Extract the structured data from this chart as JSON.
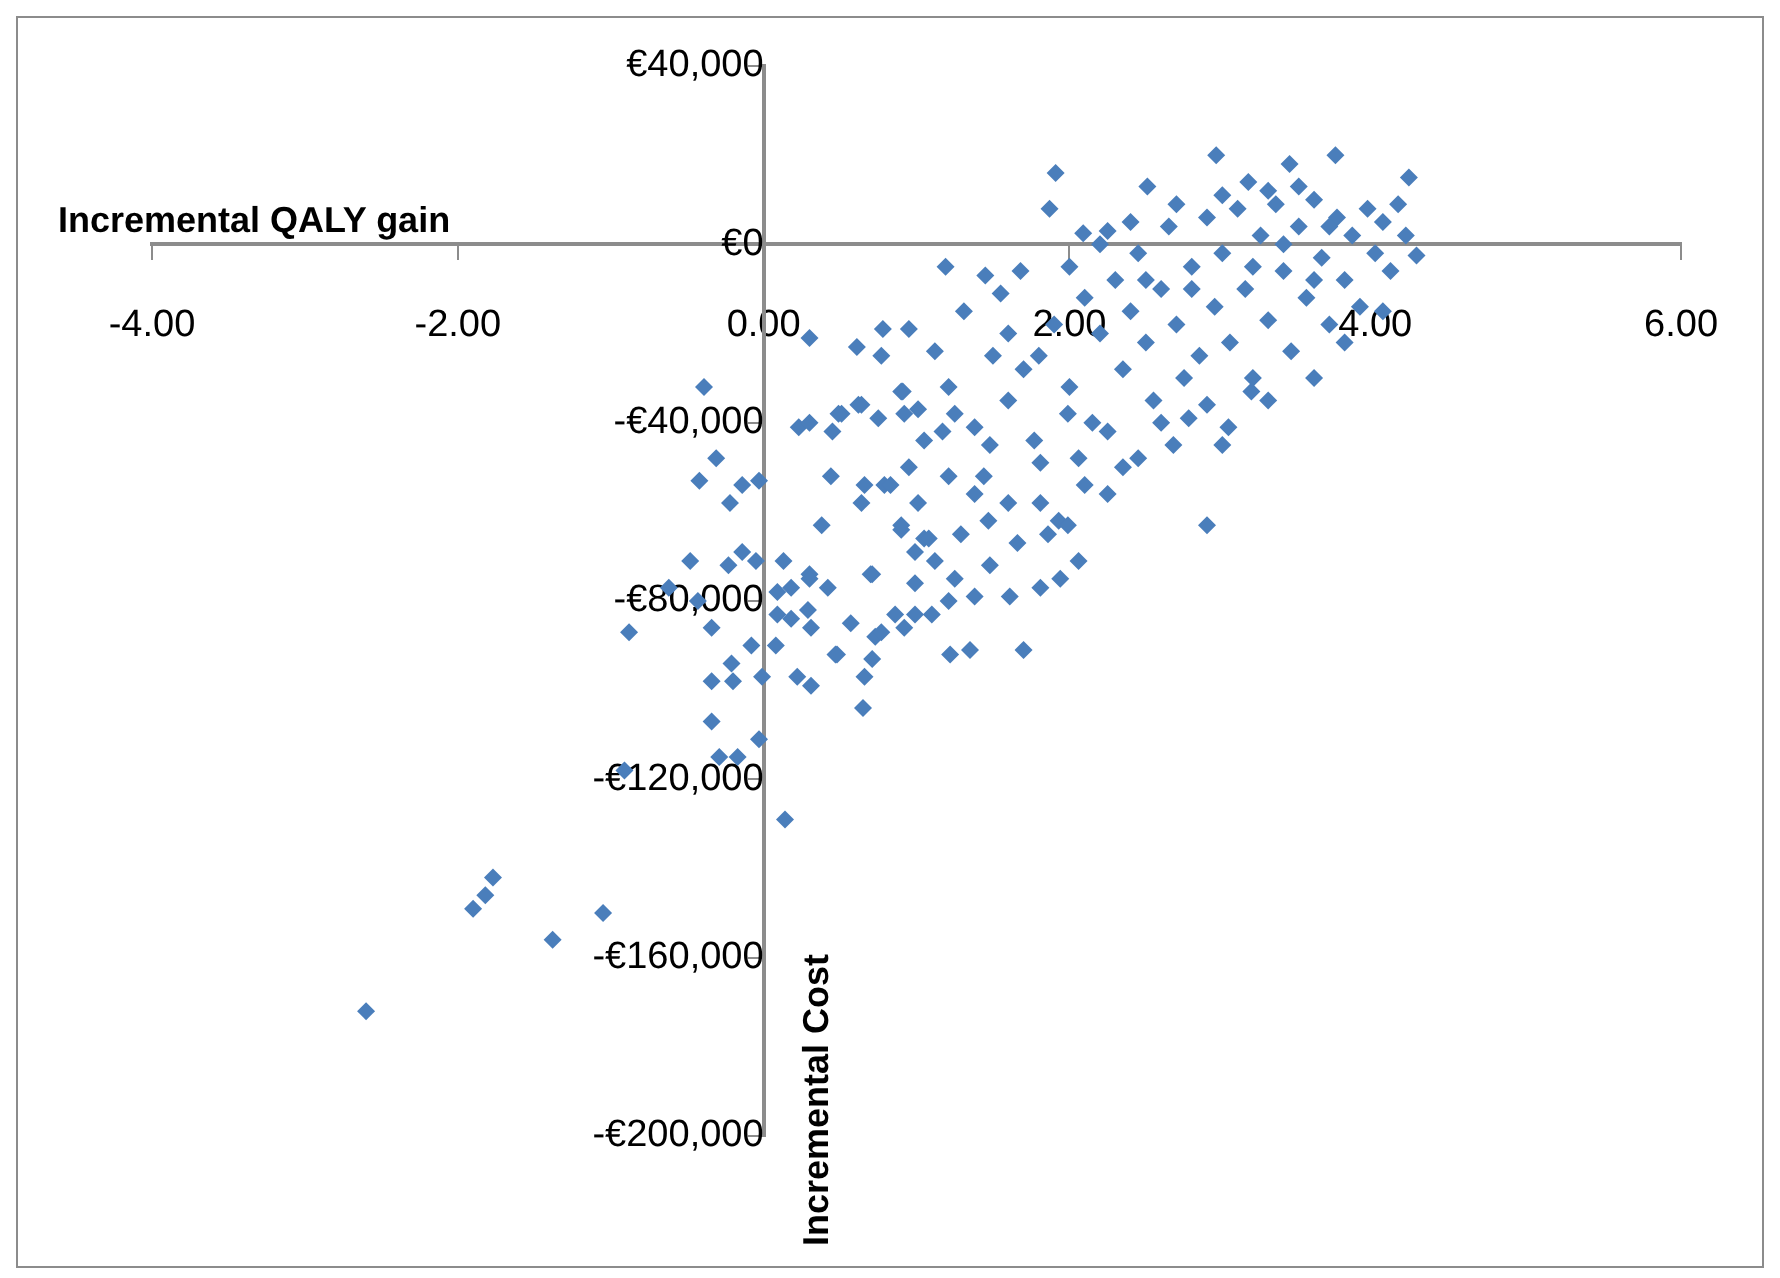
{
  "chart_data": {
    "type": "scatter",
    "xlabel": "Incremental QALY gain",
    "ylabel": "Incremental Cost",
    "xlim": [
      -4,
      6
    ],
    "ylim": [
      -200000,
      40000
    ],
    "xticks": [
      {
        "value": -4,
        "label": "-4.00"
      },
      {
        "value": -2,
        "label": "-2.00"
      },
      {
        "value": 0,
        "label": "0.00"
      },
      {
        "value": 2,
        "label": "2.00"
      },
      {
        "value": 4,
        "label": "4.00"
      },
      {
        "value": 6,
        "label": "6.00"
      }
    ],
    "yticks": [
      {
        "value": -200000,
        "label": "-€200,000"
      },
      {
        "value": -160000,
        "label": "-€160,000"
      },
      {
        "value": -120000,
        "label": "-€120,000"
      },
      {
        "value": -80000,
        "label": "-€80,000"
      },
      {
        "value": -40000,
        "label": "-€40,000"
      },
      {
        "value": 0,
        "label": "€0"
      },
      {
        "value": 40000,
        "label": "€40,000"
      }
    ],
    "grid": false,
    "legend": false,
    "marker": "diamond",
    "series": [
      {
        "color": "#4a7ebb",
        "x": [
          -2.6,
          -1.9,
          -1.82,
          -1.77,
          -1.38,
          -1.05,
          -0.91,
          -0.88,
          0.14,
          -0.39,
          -0.31,
          -0.42,
          -0.22,
          -0.14,
          -0.03,
          -0.48,
          -0.62,
          -0.43,
          -0.34,
          -0.23,
          -0.14,
          -0.05,
          -0.08,
          -0.21,
          -0.34,
          -0.2,
          -0.01,
          -0.34,
          -0.29,
          -0.17,
          -0.03,
          0.23,
          0.3,
          0.3,
          0.51,
          0.45,
          0.44,
          0.38,
          0.13,
          0.09,
          0.18,
          0.3,
          0.42,
          0.09,
          0.18,
          0.29,
          0.31,
          0.08,
          0.22,
          0.31,
          0.48,
          0.57,
          0.65,
          0.66,
          0.71,
          0.73,
          0.77,
          0.71,
          0.61,
          0.77,
          0.78,
          0.62,
          0.75,
          0.66,
          0.79,
          0.9,
          0.92,
          0.95,
          1.01,
          0.9,
          0.99,
          1.05,
          0.99,
          0.92,
          1.1,
          1.05,
          1.17,
          1.91,
          2.96,
          3.74,
          4.22,
          4.27,
          3.44,
          3.17,
          2.51,
          1.87,
          1.19,
          0.95,
          1.12,
          1.31,
          1.45,
          1.55,
          1.68,
          2.09,
          2.25,
          0.49,
          0.64,
          0.91,
          1.01,
          1.21,
          1.25,
          1.38,
          1.48,
          1.6,
          1.77,
          1.81,
          1.99,
          2.06,
          2.25,
          2.45,
          2.68,
          3.04,
          2.9,
          3.19,
          2.78,
          0.64,
          0.83,
          1.21,
          1.38,
          1.44,
          1.6,
          1.81,
          1.93,
          2.1,
          2.25,
          0.9,
          1.08,
          1.29,
          1.47,
          1.66,
          1.86,
          1.99,
          2.06,
          0.3,
          0.7,
          1.12,
          1.25,
          1.48,
          1.61,
          1.81,
          1.94,
          0.86,
          0.99,
          1.21,
          1.38,
          1.22,
          1.35,
          1.7,
          0.47,
          2.0,
          2.1,
          2.2,
          2.3,
          2.35,
          2.4,
          2.45,
          2.5,
          2.55,
          2.6,
          2.65,
          2.7,
          2.75,
          2.8,
          2.85,
          2.9,
          2.95,
          3.0,
          3.05,
          3.1,
          3.15,
          3.2,
          3.25,
          3.3,
          3.35,
          3.4,
          3.45,
          3.5,
          3.55,
          3.6,
          3.65,
          3.7,
          3.75,
          3.8,
          3.85,
          3.9,
          3.95,
          4.0,
          4.05,
          4.1,
          4.15,
          4.2,
          3.3,
          3.5,
          3.0,
          2.7,
          2.4,
          2.2,
          1.9,
          1.8,
          2.0,
          2.15,
          2.6,
          2.9,
          3.3,
          3.6,
          3.8,
          4.05,
          3.0,
          2.35,
          1.7,
          1.6,
          1.5,
          2.8,
          3.2,
          3.6,
          2.5,
          3.4,
          3.7
        ],
        "values": [
          -172000,
          -149000,
          -146000,
          -142000,
          -156000,
          -150000,
          -118000,
          -87000,
          -129000,
          -32000,
          -48000,
          -53000,
          -58000,
          -54000,
          -53000,
          -71000,
          -77000,
          -80000,
          -86000,
          -72000,
          -69000,
          -71000,
          -90000,
          -94000,
          -98000,
          -98000,
          -97000,
          -107000,
          -115000,
          -115000,
          -111000,
          -41000,
          -40000,
          -21000,
          -38000,
          -42000,
          -52000,
          -63000,
          -71000,
          -78000,
          -77000,
          -74000,
          -77000,
          -83000,
          -84000,
          -82000,
          -86000,
          -90000,
          -97000,
          -99000,
          -92000,
          -85000,
          -104000,
          -97000,
          -74000,
          -88000,
          -87000,
          -93000,
          -23000,
          -25000,
          -19000,
          -36000,
          -39000,
          -54000,
          -54000,
          -33000,
          -38000,
          -50000,
          -58000,
          -64000,
          -69000,
          -66000,
          -76000,
          -86000,
          -83000,
          -44000,
          -42000,
          16000,
          20000,
          20000,
          15000,
          -2500,
          18000,
          14000,
          13000,
          8000,
          -5000,
          -19000,
          -24000,
          -15000,
          -7000,
          -11000,
          -6000,
          2500,
          3000,
          -38000,
          -36000,
          -33000,
          -37000,
          -32000,
          -38000,
          -41000,
          -45000,
          -35000,
          -44000,
          -49000,
          -38000,
          -48000,
          -42000,
          -48000,
          -45000,
          -41000,
          -63000,
          -33000,
          -39000,
          -58000,
          -54000,
          -52000,
          -56000,
          -52000,
          -58000,
          -58000,
          -62000,
          -54000,
          -56000,
          -63000,
          -66000,
          -65000,
          -62000,
          -67000,
          -65000,
          -63000,
          -71000,
          -75000,
          -74000,
          -71000,
          -75000,
          -72000,
          -79000,
          -77000,
          -75000,
          -83000,
          -83000,
          -80000,
          -79000,
          -92000,
          -91000,
          -91000,
          -92000,
          -5000,
          -12000,
          -20000,
          -8000,
          -28000,
          -15000,
          -2000,
          -22000,
          -35000,
          -10000,
          4000,
          -18000,
          -30000,
          -5000,
          -25000,
          6000,
          -14000,
          -2000,
          -22000,
          8000,
          -10000,
          -30000,
          2000,
          -17000,
          9000,
          -6000,
          -24000,
          4000,
          -12000,
          10000,
          -3000,
          -18000,
          6000,
          -8000,
          2000,
          -14000,
          8000,
          -2000,
          5000,
          -6000,
          9000,
          2000,
          12000,
          13000,
          11000,
          9000,
          5000,
          0,
          -18000,
          -25000,
          -32000,
          -40000,
          -40000,
          -36000,
          -35000,
          -30000,
          -22000,
          -15000,
          -45000,
          -50000,
          -28000,
          -20000,
          -25000,
          -10000,
          -5000,
          -8000,
          -8000,
          0,
          4000
        ]
      }
    ]
  }
}
